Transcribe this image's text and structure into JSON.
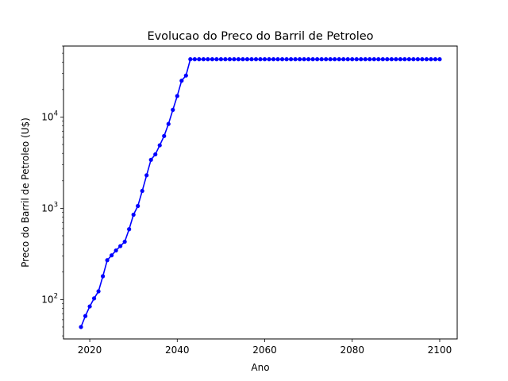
{
  "chart_data": {
    "type": "line",
    "title": "Evolucao do Preco do Barril de Petroleo",
    "xlabel": "Ano",
    "ylabel": "Preco do Barril de Petroleo (U$)",
    "xlim": [
      2014,
      2104
    ],
    "ylim": [
      37,
      60000
    ],
    "yscale": "log",
    "grid": false,
    "x_ticks": [
      2020,
      2040,
      2060,
      2080,
      2100
    ],
    "y_ticks": [
      {
        "value": 100,
        "base": "10",
        "exp": "2"
      },
      {
        "value": 1000,
        "base": "10",
        "exp": "3"
      },
      {
        "value": 10000,
        "base": "10",
        "exp": "4"
      }
    ],
    "series": [
      {
        "color": "#0000ff",
        "marker": "circle",
        "x": [
          2018,
          2019,
          2020,
          2021,
          2022,
          2023,
          2024,
          2025,
          2026,
          2027,
          2028,
          2029,
          2030,
          2031,
          2032,
          2033,
          2034,
          2035,
          2036,
          2037,
          2038,
          2039,
          2040,
          2041,
          2042,
          2043,
          2044,
          2045,
          2046,
          2047,
          2048,
          2049,
          2050,
          2051,
          2052,
          2053,
          2054,
          2055,
          2056,
          2057,
          2058,
          2059,
          2060,
          2061,
          2062,
          2063,
          2064,
          2065,
          2066,
          2067,
          2068,
          2069,
          2070,
          2071,
          2072,
          2073,
          2074,
          2075,
          2076,
          2077,
          2078,
          2079,
          2080,
          2081,
          2082,
          2083,
          2084,
          2085,
          2086,
          2087,
          2088,
          2089,
          2090,
          2091,
          2092,
          2093,
          2094,
          2095,
          2096,
          2097,
          2098,
          2099,
          2100
        ],
        "y": [
          50,
          66,
          84,
          103,
          123,
          180,
          270,
          305,
          345,
          385,
          430,
          590,
          850,
          1060,
          1550,
          2300,
          3400,
          3900,
          4900,
          6200,
          8400,
          12000,
          17000,
          25000,
          28500,
          43000,
          43000,
          43000,
          43000,
          43000,
          43000,
          43000,
          43000,
          43000,
          43000,
          43000,
          43000,
          43000,
          43000,
          43000,
          43000,
          43000,
          43000,
          43000,
          43000,
          43000,
          43000,
          43000,
          43000,
          43000,
          43000,
          43000,
          43000,
          43000,
          43000,
          43000,
          43000,
          43000,
          43000,
          43000,
          43000,
          43000,
          43000,
          43000,
          43000,
          43000,
          43000,
          43000,
          43000,
          43000,
          43000,
          43000,
          43000,
          43000,
          43000,
          43000,
          43000,
          43000,
          43000,
          43000,
          43000,
          43000,
          43000
        ]
      }
    ]
  }
}
